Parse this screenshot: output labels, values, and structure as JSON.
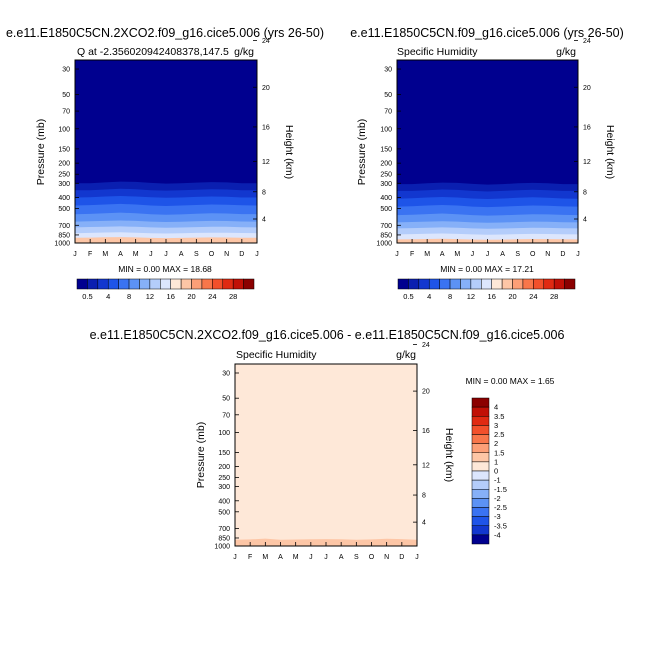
{
  "chart_data": [
    {
      "type": "heatmap",
      "title": "e.e11.E1850C5CN.2XCO2.f09_g16.cice5.006 (yrs 26-50)",
      "subtitle": "Q at -2.356020942408378,147.5",
      "units": "g/kg",
      "ylabel": "Pressure (mb)",
      "ylabel_right": "Height (km)",
      "x_ticks": [
        "J",
        "F",
        "M",
        "A",
        "M",
        "J",
        "J",
        "A",
        "S",
        "O",
        "N",
        "D",
        "J"
      ],
      "y_ticks": [
        30,
        50,
        70,
        100,
        150,
        200,
        250,
        300,
        400,
        500,
        700,
        850,
        1000
      ],
      "y_range": [
        25,
        1000
      ],
      "height_ticks": [
        4,
        8,
        12,
        16,
        20,
        24
      ],
      "stats": "MIN =  0.00 MAX =  18.68",
      "min": 0.0,
      "max": 18.68,
      "boundaries": [
        {
          "level": 0.5,
          "p": [
            300,
            300,
            295,
            290,
            292,
            298,
            302,
            300,
            296,
            293,
            295,
            300,
            300
          ]
        },
        {
          "level": 2,
          "p": [
            345,
            345,
            340,
            335,
            338,
            345,
            348,
            346,
            342,
            338,
            340,
            345,
            345
          ]
        },
        {
          "level": 4,
          "p": [
            400,
            398,
            392,
            388,
            392,
            398,
            402,
            400,
            395,
            392,
            394,
            400,
            400
          ]
        },
        {
          "level": 6,
          "p": [
            470,
            466,
            460,
            455,
            460,
            470,
            474,
            470,
            465,
            460,
            463,
            468,
            470
          ]
        },
        {
          "level": 8,
          "p": [
            560,
            556,
            548,
            542,
            550,
            560,
            566,
            562,
            555,
            550,
            552,
            558,
            560
          ]
        },
        {
          "level": 10,
          "p": [
            650,
            645,
            640,
            635,
            640,
            650,
            655,
            652,
            645,
            640,
            642,
            648,
            650
          ]
        },
        {
          "level": 12,
          "p": [
            730,
            725,
            720,
            715,
            722,
            730,
            735,
            732,
            726,
            720,
            722,
            728,
            730
          ]
        },
        {
          "level": 14,
          "p": [
            820,
            815,
            810,
            806,
            812,
            820,
            826,
            822,
            816,
            812,
            814,
            818,
            820
          ]
        },
        {
          "level": 16,
          "p": [
            900,
            896,
            892,
            888,
            894,
            902,
            906,
            903,
            897,
            893,
            895,
            899,
            900
          ]
        }
      ],
      "colorbar": {
        "levels": [
          0.5,
          4,
          8,
          12,
          16,
          20,
          24,
          28
        ],
        "colors": [
          "#00008F",
          "#0A1FB0",
          "#1237CF",
          "#1E54E8",
          "#3A73F2",
          "#5C92F5",
          "#86B0F8",
          "#B4CDFB",
          "#DCE6FD",
          "#FEE8D8",
          "#FDC6A6",
          "#FC9F77",
          "#F8764A",
          "#F2502B",
          "#E02A12",
          "#C11006",
          "#8B0000"
        ]
      }
    },
    {
      "type": "heatmap",
      "title": "e.e11.E1850C5CN.f09_g16.cice5.006 (yrs 26-50)",
      "subtitle": "Specific Humidity",
      "units": "g/kg",
      "ylabel": "Pressure (mb)",
      "ylabel_right": "Height (km)",
      "x_ticks": [
        "J",
        "F",
        "M",
        "A",
        "M",
        "J",
        "J",
        "A",
        "S",
        "O",
        "N",
        "D",
        "J"
      ],
      "y_ticks": [
        30,
        50,
        70,
        100,
        150,
        200,
        250,
        300,
        400,
        500,
        700,
        850,
        1000
      ],
      "y_range": [
        25,
        1000
      ],
      "height_ticks": [
        4,
        8,
        12,
        16,
        20,
        24
      ],
      "stats": "MIN =  0.00 MAX =  17.21",
      "min": 0.0,
      "max": 17.21,
      "boundaries": [
        {
          "level": 0.5,
          "p": [
            305,
            305,
            300,
            296,
            298,
            304,
            308,
            305,
            300,
            298,
            300,
            305,
            305
          ]
        },
        {
          "level": 2,
          "p": [
            350,
            350,
            345,
            340,
            343,
            350,
            354,
            350,
            346,
            342,
            345,
            350,
            350
          ]
        },
        {
          "level": 4,
          "p": [
            410,
            406,
            400,
            396,
            400,
            408,
            412,
            408,
            402,
            398,
            402,
            408,
            410
          ]
        },
        {
          "level": 6,
          "p": [
            480,
            476,
            470,
            465,
            470,
            480,
            485,
            480,
            474,
            470,
            472,
            478,
            480
          ]
        },
        {
          "level": 8,
          "p": [
            570,
            565,
            558,
            552,
            560,
            570,
            576,
            572,
            565,
            560,
            562,
            568,
            570
          ]
        },
        {
          "level": 10,
          "p": [
            660,
            655,
            650,
            645,
            650,
            660,
            665,
            662,
            655,
            650,
            652,
            658,
            660
          ]
        },
        {
          "level": 12,
          "p": [
            745,
            740,
            735,
            730,
            736,
            745,
            750,
            747,
            740,
            735,
            737,
            742,
            745
          ]
        },
        {
          "level": 14,
          "p": [
            840,
            836,
            830,
            826,
            832,
            840,
            846,
            842,
            836,
            832,
            834,
            838,
            840
          ]
        },
        {
          "level": 16,
          "p": [
            930,
            926,
            922,
            918,
            924,
            932,
            936,
            933,
            927,
            923,
            925,
            929,
            930
          ]
        }
      ],
      "colorbar": {
        "levels": [
          0.5,
          4,
          8,
          12,
          16,
          20,
          24,
          28
        ],
        "colors": [
          "#00008F",
          "#0A1FB0",
          "#1237CF",
          "#1E54E8",
          "#3A73F2",
          "#5C92F5",
          "#86B0F8",
          "#B4CDFB",
          "#DCE6FD",
          "#FEE8D8",
          "#FDC6A6",
          "#FC9F77",
          "#F8764A",
          "#F2502B",
          "#E02A12",
          "#C11006",
          "#8B0000"
        ]
      }
    },
    {
      "type": "heatmap",
      "title": "e.e11.E1850C5CN.2XCO2.f09_g16.cice5.006 - e.e11.E1850C5CN.f09_g16.cice5.006",
      "subtitle": "Specific Humidity",
      "units": "g/kg",
      "ylabel": "Pressure (mb)",
      "ylabel_right": "Height (km)",
      "x_ticks": [
        "J",
        "F",
        "M",
        "A",
        "M",
        "J",
        "J",
        "A",
        "S",
        "O",
        "N",
        "D",
        "J"
      ],
      "y_ticks": [
        30,
        50,
        70,
        100,
        150,
        200,
        250,
        300,
        400,
        500,
        700,
        850,
        1000
      ],
      "y_range": [
        25,
        1000
      ],
      "height_ticks": [
        4,
        8,
        12,
        16,
        20,
        24
      ],
      "stats": "MIN =  0.00 MAX =  1.65",
      "min": 0.0,
      "max": 1.65,
      "background_color": "#FEE8D8",
      "boundaries": [
        {
          "level": 1,
          "p": [
            880,
            875,
            860,
            880,
            876,
            872,
            870,
            872,
            880,
            874,
            865,
            870,
            880
          ]
        }
      ],
      "colorbar": {
        "levels": [
          "4",
          "3.5",
          "3",
          "2.5",
          "2",
          "1.5",
          "1",
          "0",
          "-1",
          "-1.5",
          "-2",
          "-2.5",
          "-3",
          "-3.5",
          "-4"
        ],
        "colors": [
          "#8B0000",
          "#C11006",
          "#E02A12",
          "#F2502B",
          "#F8764A",
          "#FC9F77",
          "#FDC6A6",
          "#FEE8D8",
          "#DCE6FD",
          "#B4CDFB",
          "#86B0F8",
          "#5C92F5",
          "#3A73F2",
          "#1E54E8",
          "#1237CF",
          "#00008F"
        ]
      }
    }
  ]
}
